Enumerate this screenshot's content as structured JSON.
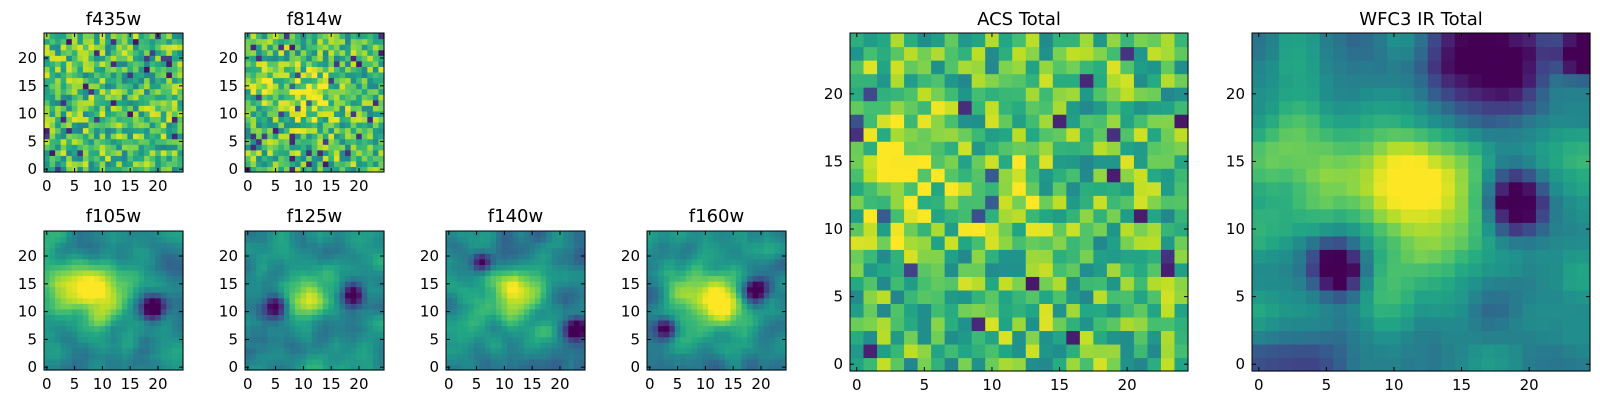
{
  "figure": {
    "description_free": true
  },
  "chart_data": [
    {
      "type": "heatmap",
      "id": "f435w",
      "title": "f435w",
      "shape": [
        25,
        25
      ],
      "colormap": "viridis",
      "xticks": [
        0,
        5,
        10,
        15,
        20
      ],
      "yticks": [
        0,
        5,
        10,
        15,
        20
      ],
      "xticklabels": [
        "0",
        "5",
        "10",
        "15",
        "20"
      ],
      "yticklabels": [
        "0",
        "5",
        "10",
        "15",
        "20"
      ],
      "xlim": [
        -0.5,
        24.5
      ],
      "ylim": [
        -0.5,
        24.5
      ],
      "style": "noise",
      "seed": 11,
      "blobs": []
    },
    {
      "type": "heatmap",
      "id": "f814w",
      "title": "f814w",
      "shape": [
        25,
        25
      ],
      "colormap": "viridis",
      "xticks": [
        0,
        5,
        10,
        15,
        20
      ],
      "yticks": [
        0,
        5,
        10,
        15,
        20
      ],
      "xticklabels": [
        "0",
        "5",
        "10",
        "15",
        "20"
      ],
      "yticklabels": [
        "0",
        "5",
        "10",
        "15",
        "20"
      ],
      "xlim": [
        -0.5,
        24.5
      ],
      "ylim": [
        -0.5,
        24.5
      ],
      "style": "noise",
      "seed": 23,
      "blobs": [
        {
          "x": 11,
          "y": 13,
          "amp": 0.28,
          "r": 3
        },
        {
          "x": 3,
          "y": 15,
          "amp": 0.2,
          "r": 2
        }
      ]
    },
    {
      "type": "heatmap",
      "id": "f105w",
      "title": "f105w",
      "shape": [
        25,
        25
      ],
      "colormap": "viridis",
      "xticks": [
        0,
        5,
        10,
        15,
        20
      ],
      "yticks": [
        0,
        5,
        10,
        15,
        20
      ],
      "xticklabels": [
        "0",
        "5",
        "10",
        "15",
        "20"
      ],
      "yticklabels": [
        "0",
        "5",
        "10",
        "15",
        "20"
      ],
      "xlim": [
        -0.5,
        24.5
      ],
      "ylim": [
        -0.5,
        24.5
      ],
      "style": "smooth",
      "seed": 37,
      "blobs": [
        {
          "x": 10,
          "y": 13,
          "amp": 0.45,
          "r": 4
        },
        {
          "x": 4,
          "y": 15,
          "amp": 0.3,
          "r": 3
        },
        {
          "x": 19,
          "y": 11,
          "amp": -0.75,
          "r": 1.6
        }
      ]
    },
    {
      "type": "heatmap",
      "id": "f125w",
      "title": "f125w",
      "shape": [
        25,
        25
      ],
      "colormap": "viridis",
      "xticks": [
        0,
        5,
        10,
        15,
        20
      ],
      "yticks": [
        0,
        5,
        10,
        15,
        20
      ],
      "xticklabels": [
        "0",
        "5",
        "10",
        "15",
        "20"
      ],
      "yticklabels": [
        "0",
        "5",
        "10",
        "15",
        "20"
      ],
      "xlim": [
        -0.5,
        24.5
      ],
      "ylim": [
        -0.5,
        24.5
      ],
      "style": "smooth",
      "seed": 41,
      "blobs": [
        {
          "x": 11,
          "y": 13,
          "amp": 0.45,
          "r": 3
        },
        {
          "x": 5,
          "y": 11,
          "amp": -0.6,
          "r": 1.5
        },
        {
          "x": 19,
          "y": 13,
          "amp": -0.6,
          "r": 1.5
        }
      ]
    },
    {
      "type": "heatmap",
      "id": "f140w",
      "title": "f140w",
      "shape": [
        25,
        25
      ],
      "colormap": "viridis",
      "xticks": [
        0,
        5,
        10,
        15,
        20
      ],
      "yticks": [
        0,
        5,
        10,
        15,
        20
      ],
      "xticklabels": [
        "0",
        "5",
        "10",
        "15",
        "20"
      ],
      "yticklabels": [
        "0",
        "5",
        "10",
        "15",
        "20"
      ],
      "xlim": [
        -0.5,
        24.5
      ],
      "ylim": [
        -0.5,
        24.5
      ],
      "style": "smooth",
      "seed": 53,
      "blobs": [
        {
          "x": 12,
          "y": 13,
          "amp": 0.45,
          "r": 3.5
        },
        {
          "x": 6,
          "y": 19,
          "amp": -0.6,
          "r": 1.3
        },
        {
          "x": 23,
          "y": 7,
          "amp": -0.6,
          "r": 1.3
        }
      ]
    },
    {
      "type": "heatmap",
      "id": "f160w",
      "title": "f160w",
      "shape": [
        25,
        25
      ],
      "colormap": "viridis",
      "xticks": [
        0,
        5,
        10,
        15,
        20
      ],
      "yticks": [
        0,
        5,
        10,
        15,
        20
      ],
      "xticklabels": [
        "0",
        "5",
        "10",
        "15",
        "20"
      ],
      "yticklabels": [
        "0",
        "5",
        "10",
        "15",
        "20"
      ],
      "xlim": [
        -0.5,
        24.5
      ],
      "ylim": [
        -0.5,
        24.5
      ],
      "style": "smooth",
      "seed": 67,
      "blobs": [
        {
          "x": 12,
          "y": 12,
          "amp": 0.6,
          "r": 3.5
        },
        {
          "x": 5,
          "y": 15,
          "amp": 0.35,
          "r": 2.5
        },
        {
          "x": 19,
          "y": 14,
          "amp": -0.65,
          "r": 1.5
        },
        {
          "x": 3,
          "y": 7,
          "amp": -0.6,
          "r": 1.3
        }
      ]
    },
    {
      "type": "heatmap",
      "id": "acs_total",
      "title": "ACS Total",
      "shape": [
        25,
        25
      ],
      "colormap": "viridis",
      "xticks": [
        0,
        5,
        10,
        15,
        20
      ],
      "yticks": [
        0,
        5,
        10,
        15,
        20
      ],
      "xticklabels": [
        "0",
        "5",
        "10",
        "15",
        "20"
      ],
      "yticklabels": [
        "0",
        "5",
        "10",
        "15",
        "20"
      ],
      "xlim": [
        -0.5,
        24.5
      ],
      "ylim": [
        -0.5,
        24.5
      ],
      "style": "noise",
      "seed": 79,
      "blobs": [
        {
          "x": 3,
          "y": 14,
          "amp": 0.25,
          "r": 3
        },
        {
          "x": 11,
          "y": 12,
          "amp": 0.2,
          "r": 2
        }
      ]
    },
    {
      "type": "heatmap",
      "id": "wfc3_ir_total",
      "title": "WFC3 IR Total",
      "shape": [
        25,
        25
      ],
      "colormap": "viridis",
      "xticks": [
        0,
        5,
        10,
        15,
        20
      ],
      "yticks": [
        0,
        5,
        10,
        15,
        20
      ],
      "xticklabels": [
        "0",
        "5",
        "10",
        "15",
        "20"
      ],
      "yticklabels": [
        "0",
        "5",
        "10",
        "15",
        "20"
      ],
      "xlim": [
        -0.5,
        24.5
      ],
      "ylim": [
        -0.5,
        24.5
      ],
      "style": "smooth",
      "seed": 97,
      "blobs": [
        {
          "x": 12,
          "y": 13,
          "amp": 0.55,
          "r": 3.5
        },
        {
          "x": 2,
          "y": 15,
          "amp": 0.35,
          "r": 3
        },
        {
          "x": 19,
          "y": 12,
          "amp": -0.85,
          "r": 1.6
        },
        {
          "x": 6,
          "y": 7,
          "amp": -0.75,
          "r": 1.4
        },
        {
          "x": 17,
          "y": 22,
          "amp": -0.6,
          "r": 3
        },
        {
          "x": 24,
          "y": 23,
          "amp": -0.8,
          "r": 1.2
        }
      ]
    }
  ]
}
